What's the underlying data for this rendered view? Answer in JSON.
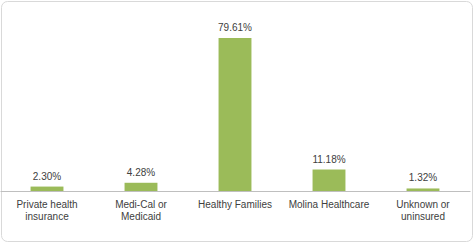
{
  "chart_data": {
    "type": "bar",
    "categories": [
      "Private health insurance",
      "Medi-Cal or Medicaid",
      "Healthy Families",
      "Molina Healthcare",
      "Unknown or uninsured"
    ],
    "values": [
      2.3,
      4.28,
      79.61,
      11.18,
      1.32
    ],
    "value_labels": [
      "2.30%",
      "4.28%",
      "79.61%",
      "11.18%",
      "1.32%"
    ],
    "color": "#9bbb59",
    "data_labels": true,
    "tick_labels": "x"
  }
}
